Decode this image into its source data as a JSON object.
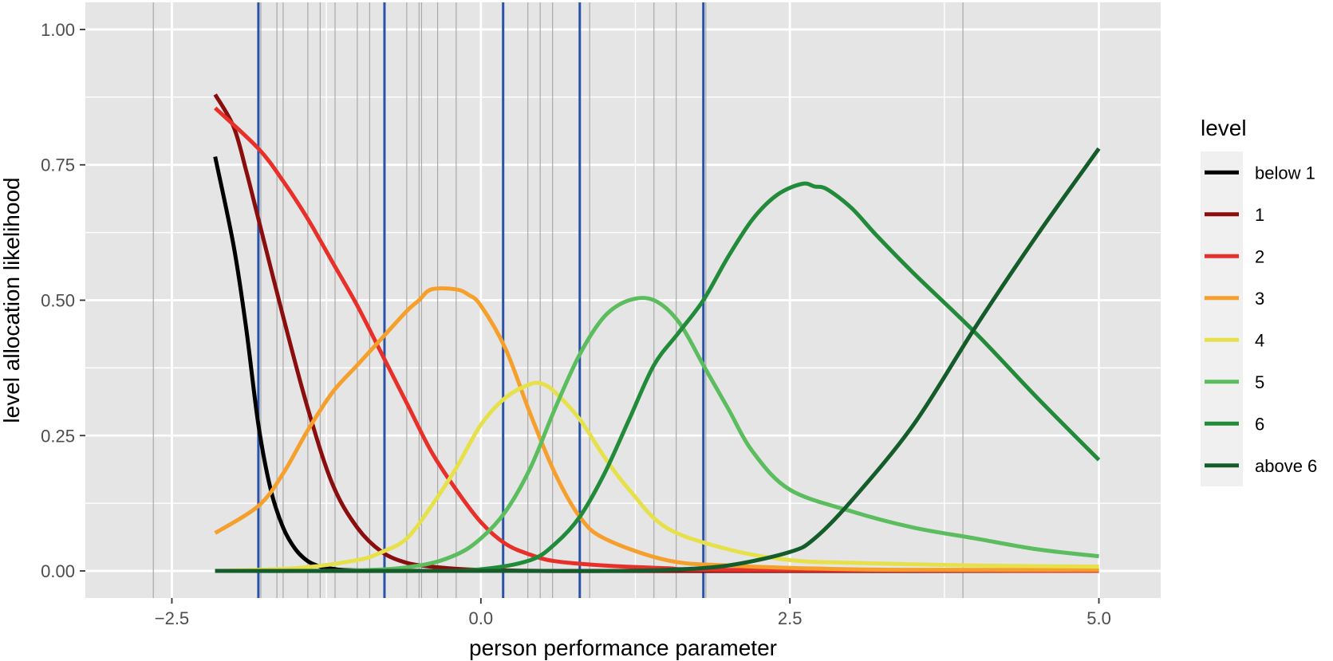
{
  "chart_data": {
    "type": "line",
    "title": "",
    "xlabel": "person performance parameter",
    "ylabel": "level allocation likelihood",
    "xlim": [
      -3.2,
      5.5
    ],
    "ylim": [
      -0.05,
      1.05
    ],
    "xticks": [
      -2.5,
      0.0,
      2.5,
      5.0
    ],
    "xtick_labels": [
      "−2.5",
      "0.0",
      "2.5",
      "5.0"
    ],
    "yticks": [
      0.0,
      0.25,
      0.5,
      0.75,
      1.0
    ],
    "ytick_labels": [
      "0.00",
      "0.25",
      "0.50",
      "0.75",
      "1.00"
    ],
    "grid": true,
    "legend": {
      "title": "level",
      "position": "right"
    },
    "panel_color": "#e5e5e5",
    "reference_lines": {
      "thresholds": [
        -1.8,
        -0.78,
        0.18,
        0.8,
        1.8
      ],
      "threshold_color": "#2a52a8",
      "item_lines": [
        -2.65,
        -1.8,
        -1.78,
        -1.65,
        -1.6,
        -1.4,
        -1.3,
        -1.18,
        -1.0,
        -0.9,
        -0.78,
        -0.6,
        -0.5,
        -0.48,
        -0.35,
        -0.2,
        0.18,
        0.38,
        0.48,
        0.58,
        0.8,
        0.88,
        1.4,
        1.58,
        1.8,
        1.82,
        3.9
      ],
      "item_color": "#a9a9a9"
    },
    "series": [
      {
        "name": "below 1",
        "color": "#000000",
        "x": [
          -2.15,
          -2.0,
          -1.9,
          -1.8,
          -1.7,
          -1.6,
          -1.5,
          -1.4,
          -1.3,
          -1.2,
          -1.0,
          0.0,
          5.0
        ],
        "y": [
          0.765,
          0.6,
          0.45,
          0.27,
          0.15,
          0.08,
          0.04,
          0.018,
          0.008,
          0.004,
          0.001,
          0.0,
          0.0
        ]
      },
      {
        "name": "1",
        "color": "#8b0e0e",
        "x": [
          -2.15,
          -2.0,
          -1.9,
          -1.8,
          -1.6,
          -1.4,
          -1.2,
          -1.0,
          -0.8,
          -0.6,
          -0.4,
          -0.2,
          0.0,
          0.5,
          1.0,
          5.0
        ],
        "y": [
          0.88,
          0.82,
          0.74,
          0.65,
          0.47,
          0.3,
          0.16,
          0.08,
          0.035,
          0.015,
          0.008,
          0.004,
          0.002,
          0.0,
          0.0,
          0.0
        ]
      },
      {
        "name": "2",
        "color": "#e8302a",
        "x": [
          -2.15,
          -1.8,
          -1.6,
          -1.4,
          -1.2,
          -1.0,
          -0.8,
          -0.6,
          -0.4,
          -0.2,
          0.0,
          0.2,
          0.4,
          0.6,
          1.0,
          1.5,
          2.0,
          5.0
        ],
        "y": [
          0.855,
          0.78,
          0.72,
          0.65,
          0.57,
          0.49,
          0.4,
          0.31,
          0.22,
          0.15,
          0.09,
          0.05,
          0.03,
          0.018,
          0.01,
          0.005,
          0.002,
          0.0
        ]
      },
      {
        "name": "3",
        "color": "#f5a02c",
        "x": [
          -2.15,
          -1.8,
          -1.6,
          -1.4,
          -1.2,
          -1.0,
          -0.8,
          -0.6,
          -0.5,
          -0.4,
          -0.2,
          -0.1,
          0.0,
          0.2,
          0.4,
          0.6,
          0.8,
          1.0,
          1.5,
          2.0,
          3.0,
          4.0,
          5.0
        ],
        "y": [
          0.07,
          0.12,
          0.18,
          0.26,
          0.33,
          0.38,
          0.43,
          0.48,
          0.5,
          0.52,
          0.52,
          0.51,
          0.49,
          0.41,
          0.29,
          0.18,
          0.1,
          0.06,
          0.02,
          0.01,
          0.003,
          0.002,
          0.002
        ]
      },
      {
        "name": "4",
        "color": "#e6e14a",
        "x": [
          -2.15,
          -1.5,
          -1.0,
          -0.8,
          -0.6,
          -0.4,
          -0.2,
          0.0,
          0.2,
          0.4,
          0.5,
          0.6,
          0.8,
          1.0,
          1.2,
          1.5,
          2.0,
          2.5,
          3.0,
          4.0,
          5.0
        ],
        "y": [
          0.0,
          0.005,
          0.02,
          0.035,
          0.06,
          0.12,
          0.19,
          0.27,
          0.32,
          0.345,
          0.345,
          0.33,
          0.28,
          0.21,
          0.15,
          0.08,
          0.04,
          0.02,
          0.015,
          0.01,
          0.008
        ]
      },
      {
        "name": "5",
        "color": "#5cbd5e",
        "x": [
          -2.15,
          -1.0,
          -0.5,
          -0.2,
          0.0,
          0.2,
          0.4,
          0.6,
          0.8,
          1.0,
          1.2,
          1.4,
          1.6,
          1.8,
          2.0,
          2.2,
          2.5,
          3.0,
          3.5,
          4.0,
          4.5,
          5.0
        ],
        "y": [
          0.0,
          0.001,
          0.01,
          0.03,
          0.06,
          0.11,
          0.19,
          0.3,
          0.4,
          0.47,
          0.5,
          0.5,
          0.46,
          0.38,
          0.3,
          0.22,
          0.15,
          0.11,
          0.08,
          0.06,
          0.04,
          0.027
        ]
      },
      {
        "name": "6",
        "color": "#228b3a",
        "x": [
          -2.15,
          -0.5,
          0.0,
          0.4,
          0.6,
          0.8,
          1.0,
          1.2,
          1.4,
          1.6,
          1.8,
          2.0,
          2.2,
          2.4,
          2.6,
          2.7,
          2.8,
          3.0,
          3.2,
          3.5,
          4.0,
          4.5,
          5.0
        ],
        "y": [
          0.0,
          0.0,
          0.003,
          0.02,
          0.05,
          0.1,
          0.18,
          0.28,
          0.38,
          0.44,
          0.5,
          0.58,
          0.65,
          0.695,
          0.715,
          0.71,
          0.705,
          0.67,
          0.62,
          0.55,
          0.44,
          0.32,
          0.205
        ]
      },
      {
        "name": "above 6",
        "color": "#145c2a",
        "x": [
          -2.15,
          0.0,
          1.0,
          1.5,
          2.0,
          2.5,
          2.7,
          3.0,
          3.5,
          4.0,
          4.5,
          5.0
        ],
        "y": [
          0.0,
          0.0,
          0.0,
          0.002,
          0.01,
          0.035,
          0.06,
          0.13,
          0.27,
          0.45,
          0.62,
          0.78
        ]
      }
    ]
  }
}
